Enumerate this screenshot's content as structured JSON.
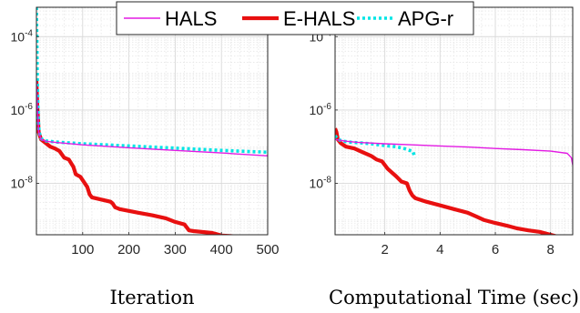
{
  "legend": [
    {
      "label": "HALS",
      "color": "#e31ae3",
      "style": "solid-thin"
    },
    {
      "label": "E-HALS",
      "color": "#e81010",
      "style": "solid-thick"
    },
    {
      "label": "APG-r",
      "color": "#00e5e5",
      "style": "dotted"
    }
  ],
  "chart_data": [
    {
      "type": "line",
      "xlabel": "Iteration",
      "ylabel": "",
      "scale_y": "log",
      "grid": true,
      "xlim": [
        0,
        500
      ],
      "ylim_exponent": [
        -9.4,
        -3.2
      ],
      "x_ticks": [
        100,
        200,
        300,
        400,
        500
      ],
      "x_tick_labels": [
        "100",
        "200",
        "300",
        "400",
        "500"
      ],
      "y_ticks_exponent": [
        -4,
        -6,
        -8
      ],
      "y_tick_labels": [
        {
          "base": "10",
          "exp": "-4"
        },
        {
          "base": "10",
          "exp": "-6"
        },
        {
          "base": "10",
          "exp": "-8"
        }
      ],
      "series": [
        {
          "name": "HALS",
          "x": [
            0,
            2,
            5,
            10,
            20,
            40,
            100,
            200,
            300,
            400,
            500
          ],
          "log10_y": [
            -5.2,
            -5.9,
            -6.6,
            -6.8,
            -6.85,
            -6.88,
            -6.95,
            -7.03,
            -7.1,
            -7.17,
            -7.25
          ]
        },
        {
          "name": "E-HALS",
          "x": [
            0,
            2,
            5,
            10,
            20,
            30,
            40,
            50,
            60,
            70,
            80,
            85,
            95,
            110,
            115,
            120,
            160,
            165,
            170,
            180,
            220,
            250,
            280,
            300,
            320,
            330,
            340,
            380,
            400,
            440,
            470,
            475,
            485,
            493,
            496
          ],
          "log10_y": [
            -5.2,
            -5.9,
            -6.6,
            -6.8,
            -6.9,
            -7.0,
            -7.05,
            -7.12,
            -7.3,
            -7.35,
            -7.55,
            -7.75,
            -7.82,
            -8.1,
            -8.3,
            -8.38,
            -8.5,
            -8.55,
            -8.65,
            -8.7,
            -8.8,
            -8.87,
            -8.95,
            -9.05,
            -9.12,
            -9.28,
            -9.3,
            -9.35,
            -9.42,
            -9.45,
            -9.5,
            -9.8,
            -9.82,
            -9.83,
            -10.4
          ]
        },
        {
          "name": "APG-r",
          "x": [
            0,
            1,
            2,
            4,
            6,
            10,
            20,
            40,
            100,
            200,
            300,
            400,
            500
          ],
          "log10_y": [
            -3.2,
            -4.0,
            -5.2,
            -6.2,
            -6.6,
            -6.78,
            -6.84,
            -6.87,
            -6.92,
            -6.98,
            -7.04,
            -7.1,
            -7.15
          ]
        }
      ]
    },
    {
      "type": "line",
      "xlabel": "Computational Time (sec)",
      "ylabel": "",
      "scale_y": "log",
      "grid": true,
      "xlim": [
        0.2,
        8.8
      ],
      "ylim_exponent": [
        -9.4,
        -3.2
      ],
      "x_ticks": [
        2,
        4,
        6,
        8
      ],
      "x_tick_labels": [
        "2",
        "4",
        "6",
        "8"
      ],
      "y_ticks_exponent": [
        -4,
        -6,
        -8
      ],
      "y_tick_labels": [
        {
          "base": "10",
          "exp": "-4"
        },
        {
          "base": "10",
          "exp": "-6"
        },
        {
          "base": "10",
          "exp": "-8"
        }
      ],
      "series": [
        {
          "name": "HALS",
          "x": [
            0.2,
            0.35,
            0.6,
            1,
            2,
            3,
            4,
            5,
            6,
            7,
            8,
            8.6,
            8.75,
            8.8
          ],
          "log10_y": [
            -6.8,
            -6.82,
            -6.85,
            -6.88,
            -6.92,
            -6.95,
            -6.98,
            -7.01,
            -7.05,
            -7.08,
            -7.12,
            -7.18,
            -7.3,
            -7.5
          ]
        },
        {
          "name": "E-HALS",
          "x": [
            0.2,
            0.25,
            0.3,
            0.4,
            0.6,
            0.9,
            1.2,
            1.5,
            1.7,
            1.9,
            2.1,
            2.4,
            2.6,
            2.8,
            2.9,
            3.0,
            3.1,
            3.5,
            4.0,
            4.5,
            5.0,
            5.3,
            5.6,
            6.0,
            6.4,
            6.8,
            7.2,
            7.6,
            8.0,
            8.5,
            8.7,
            8.75,
            8.8
          ],
          "log10_y": [
            -6.5,
            -6.6,
            -6.8,
            -6.9,
            -7.0,
            -7.05,
            -7.15,
            -7.25,
            -7.35,
            -7.4,
            -7.6,
            -7.8,
            -7.95,
            -8.0,
            -8.2,
            -8.33,
            -8.4,
            -8.5,
            -8.6,
            -8.7,
            -8.8,
            -8.9,
            -9.0,
            -9.08,
            -9.15,
            -9.23,
            -9.28,
            -9.32,
            -9.4,
            -9.5,
            -9.7,
            -9.75,
            -10.4
          ]
        },
        {
          "name": "APG-r",
          "x": [
            0.2,
            0.3,
            0.5,
            0.8,
            1.2,
            1.6,
            2.0,
            2.4,
            2.7,
            2.9,
            3.0,
            3.05,
            3.1
          ],
          "log10_y": [
            -6.7,
            -6.8,
            -6.85,
            -6.88,
            -6.9,
            -6.93,
            -6.97,
            -7.0,
            -7.05,
            -7.1,
            -7.12,
            -7.2,
            -7.3
          ]
        }
      ]
    }
  ]
}
